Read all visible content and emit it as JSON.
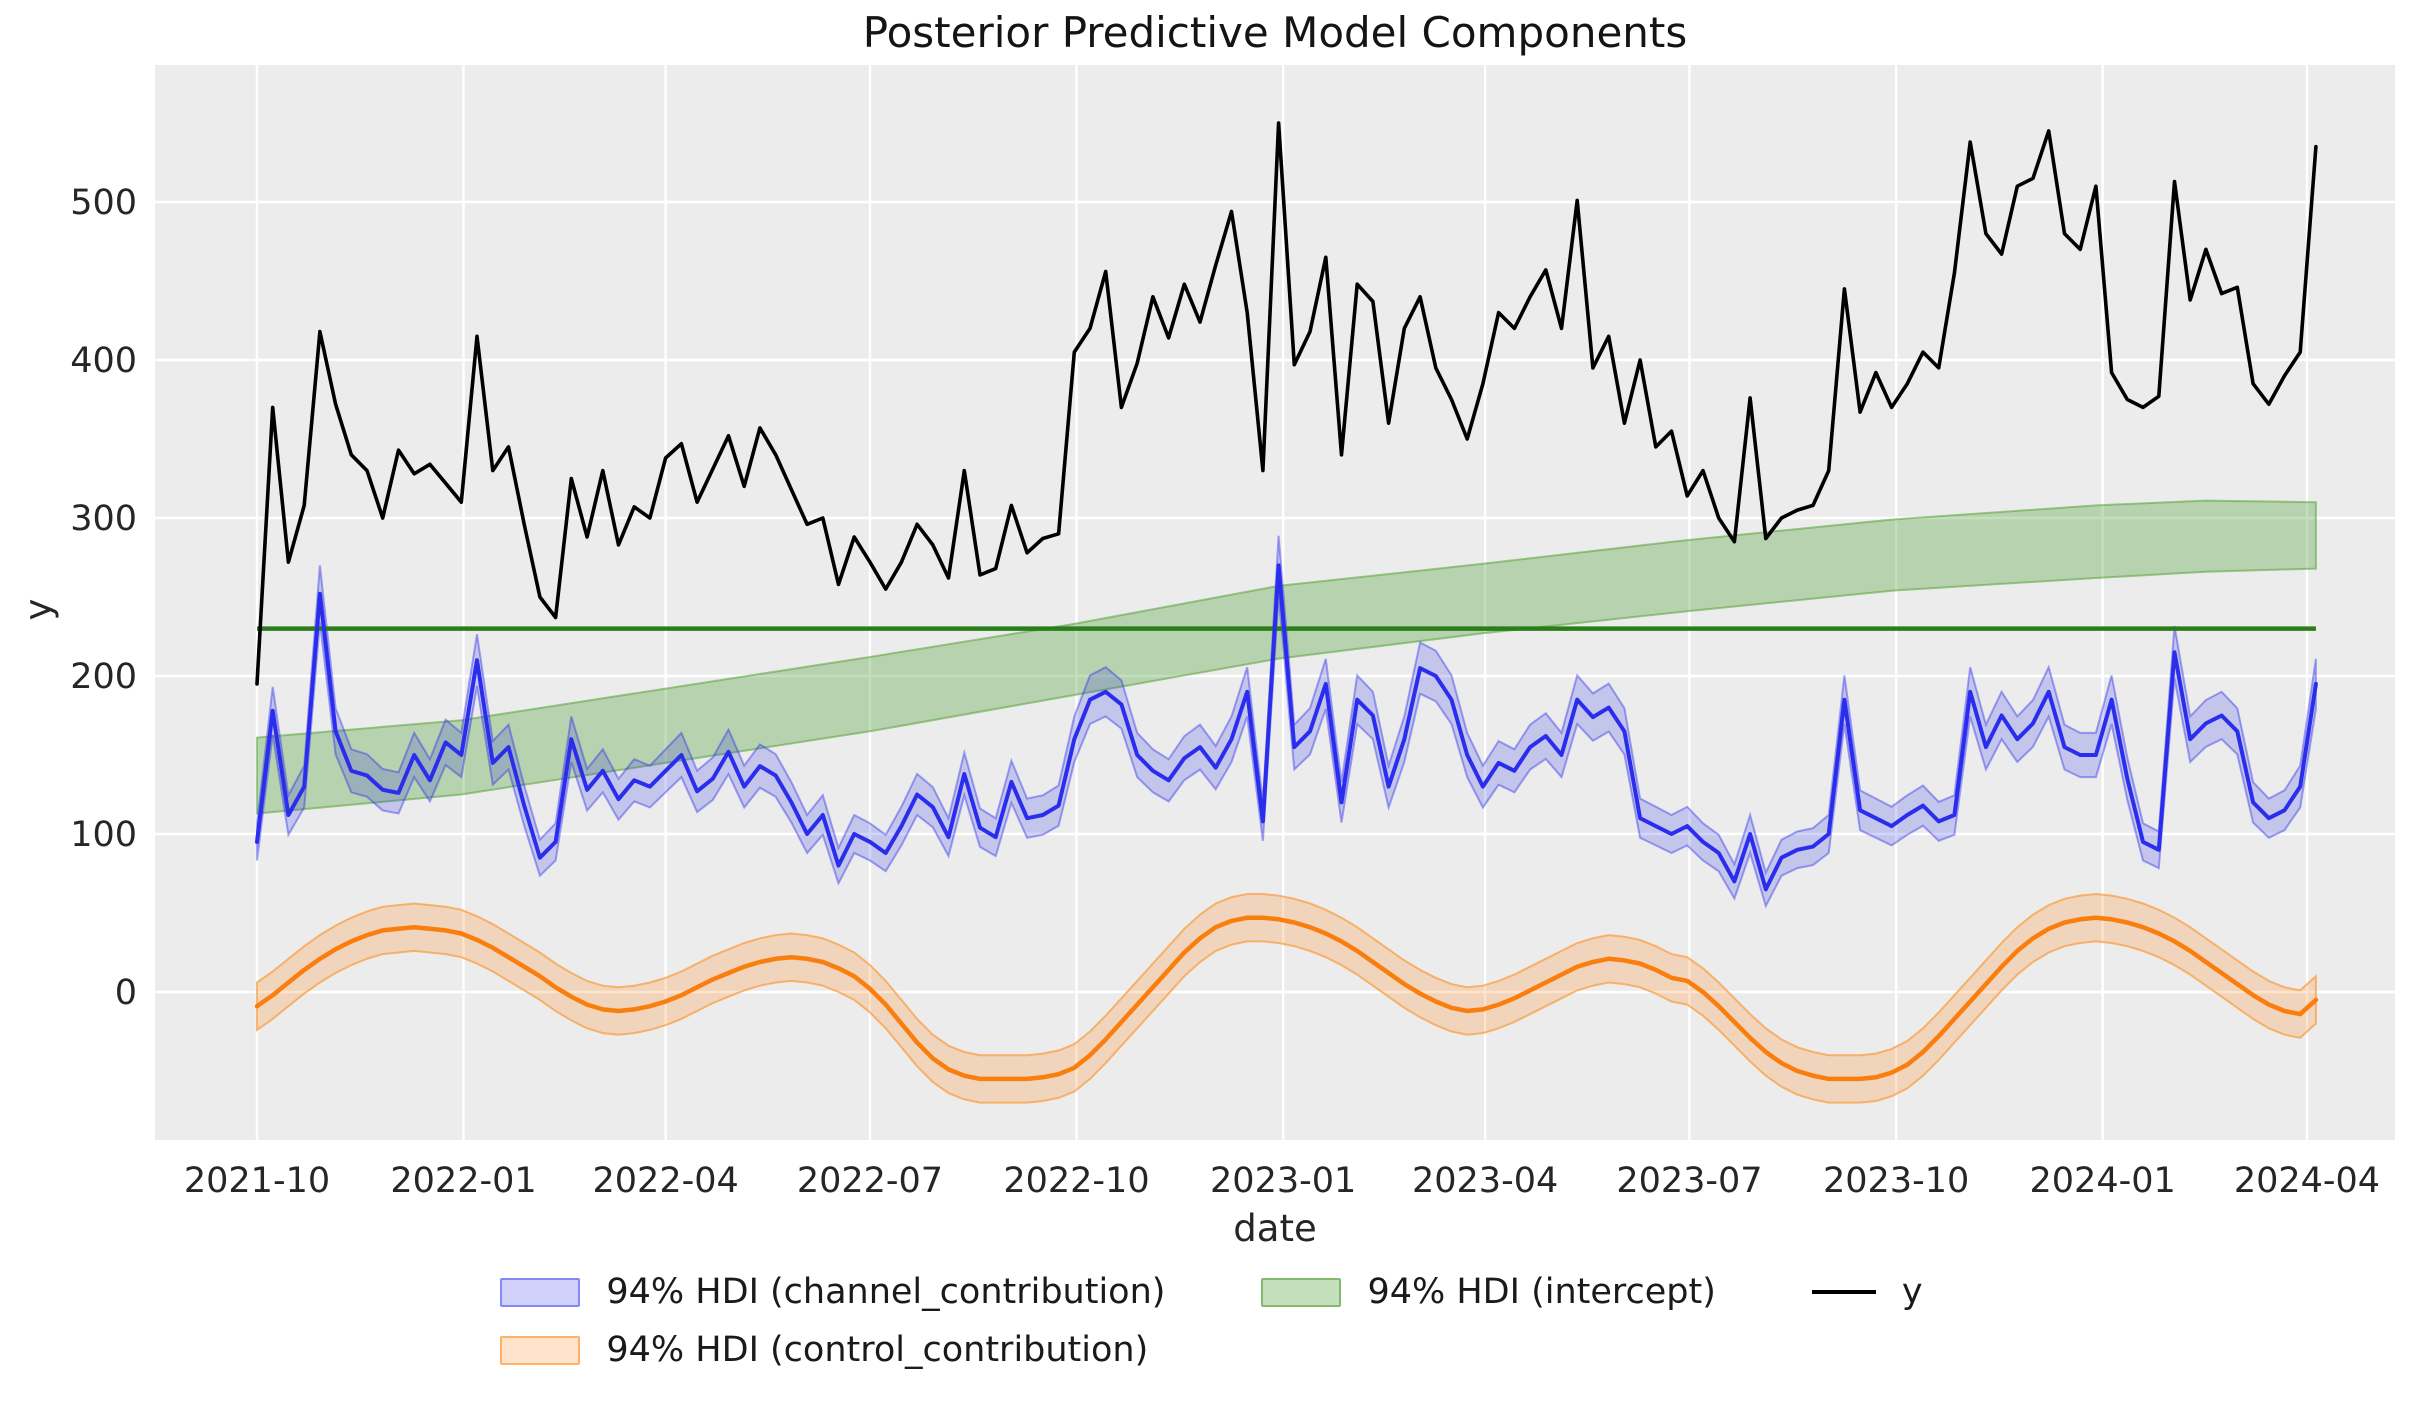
{
  "title": "Posterior Predictive Model Components",
  "x_axis": {
    "label": "date",
    "tick_labels": [
      "2021-10",
      "2022-01",
      "2022-04",
      "2022-07",
      "2022-10",
      "2023-01",
      "2023-04",
      "2023-07",
      "2023-10",
      "2024-01",
      "2024-04"
    ],
    "tick_week_index": [
      0,
      13.14,
      26.0,
      39.0,
      52.14,
      65.29,
      78.14,
      91.14,
      104.29,
      117.43,
      130.43
    ]
  },
  "y_axis": {
    "label": "y",
    "tick_labels": [
      "0",
      "100",
      "200",
      "300",
      "400",
      "500"
    ],
    "tick_values": [
      0,
      100,
      200,
      300,
      400,
      500
    ]
  },
  "legend": {
    "items": [
      {
        "label": "94% HDI (channel_contribution)",
        "swatch": "band",
        "fill": "rgba(42,46,236,0.22)",
        "edge": "rgba(42,46,236,0.45)"
      },
      {
        "label": "94% HDI (intercept)",
        "swatch": "band",
        "fill": "rgba(86,162,60,0.35)",
        "edge": "rgba(86,162,60,0.6)"
      },
      {
        "label": "y",
        "swatch": "line",
        "color": "#000000"
      },
      {
        "label": "94% HDI (control_contribution)",
        "swatch": "band",
        "fill": "rgba(255,127,14,0.22)",
        "edge": "rgba(255,127,14,0.5)"
      }
    ]
  },
  "colors": {
    "axes_background": "#ececec",
    "grid": "#ffffff",
    "y_line": "#000000",
    "channel_line": "#2a2eec",
    "channel_band_fill": "rgba(42,46,236,0.20)",
    "channel_band_edge": "rgba(42,46,236,0.42)",
    "control_line": "#f97e0e",
    "control_band_fill": "rgba(255,127,14,0.22)",
    "control_band_edge": "rgba(249,160,70,0.75)",
    "intercept_line": "#2a7e19",
    "intercept_band_fill": "rgba(86,162,60,0.35)",
    "intercept_band_edge": "rgba(86,162,60,0.55)",
    "tick_text": "#262626",
    "title_text": "#141414"
  },
  "chart_data": {
    "type": "line",
    "title": "Posterior Predictive Model Components",
    "xlabel": "date",
    "ylabel": "y",
    "x_start_date": "2021-10-01",
    "x_step_days": 7,
    "n_points": 132,
    "ylim_ticks": [
      0,
      500
    ],
    "grid": "on",
    "legend_position": "below",
    "hdi_probability": "94%",
    "series": [
      {
        "name": "y",
        "type": "line",
        "color": "#000000",
        "values": [
          195,
          370,
          272,
          308,
          418,
          372,
          340,
          330,
          300,
          343,
          328,
          334,
          322,
          310,
          415,
          330,
          345,
          296,
          250,
          237,
          325,
          288,
          330,
          283,
          307,
          300,
          338,
          347,
          310,
          331,
          352,
          320,
          357,
          340,
          318,
          296,
          300,
          258,
          288,
          272,
          255,
          272,
          296,
          283,
          262,
          330,
          264,
          268,
          308,
          278,
          287,
          290,
          405,
          420,
          456,
          370,
          398,
          440,
          414,
          448,
          424,
          460,
          494,
          430,
          330,
          550,
          397,
          418,
          465,
          340,
          448,
          437,
          360,
          420,
          440,
          395,
          375,
          350,
          385,
          430,
          420,
          440,
          457,
          420,
          501,
          395,
          415,
          360,
          400,
          345,
          355,
          314,
          330,
          300,
          285,
          376,
          287,
          300,
          305,
          308,
          330,
          445,
          367,
          392,
          370,
          385,
          405,
          395,
          455,
          538,
          480,
          467,
          510,
          515,
          545,
          480,
          470,
          510,
          392,
          375,
          370,
          377,
          513,
          438,
          470,
          442,
          446,
          385,
          372,
          390,
          405,
          535
        ]
      },
      {
        "name": "channel_contribution mean",
        "type": "line_with_hdi_band",
        "color": "#2a2eec",
        "band_halfwidth_rule": "8 + 0.04 * value",
        "values": [
          95,
          178,
          112,
          130,
          252,
          165,
          140,
          137,
          128,
          126,
          150,
          134,
          158,
          150,
          210,
          145,
          155,
          118,
          85,
          95,
          160,
          128,
          140,
          122,
          134,
          130,
          140,
          150,
          127,
          135,
          152,
          130,
          143,
          137,
          120,
          100,
          112,
          80,
          100,
          95,
          88,
          105,
          125,
          117,
          98,
          138,
          104,
          98,
          133,
          110,
          112,
          118,
          160,
          185,
          190,
          182,
          150,
          140,
          134,
          148,
          155,
          142,
          160,
          190,
          108,
          270,
          155,
          165,
          195,
          120,
          185,
          175,
          130,
          160,
          205,
          200,
          185,
          150,
          130,
          145,
          140,
          155,
          162,
          150,
          185,
          174,
          180,
          165,
          110,
          105,
          100,
          105,
          95,
          88,
          70,
          100,
          65,
          85,
          90,
          92,
          100,
          185,
          115,
          110,
          105,
          112,
          118,
          108,
          112,
          190,
          155,
          175,
          160,
          170,
          190,
          155,
          150,
          150,
          185,
          135,
          95,
          90,
          215,
          160,
          170,
          175,
          165,
          120,
          110,
          115,
          130,
          195
        ]
      },
      {
        "name": "control_contribution mean",
        "type": "line_with_hdi_band",
        "color": "#f97e0e",
        "band_halfwidth_rule": "15",
        "values": [
          -9,
          -2,
          6,
          14,
          21,
          27,
          32,
          36,
          39,
          40,
          41,
          40,
          39,
          37,
          33,
          28,
          22,
          16,
          10,
          3,
          -3,
          -8,
          -11,
          -12,
          -11,
          -9,
          -6,
          -2,
          3,
          8,
          12,
          16,
          19,
          21,
          22,
          21,
          19,
          15,
          10,
          2,
          -8,
          -20,
          -32,
          -42,
          -49,
          -53,
          -55,
          -55,
          -55,
          -55,
          -54,
          -52,
          -48,
          -40,
          -30,
          -19,
          -8,
          3,
          14,
          25,
          34,
          41,
          45,
          47,
          47,
          46,
          44,
          41,
          37,
          32,
          26,
          19,
          12,
          5,
          -1,
          -6,
          -10,
          -12,
          -11,
          -8,
          -4,
          1,
          6,
          11,
          16,
          19,
          21,
          20,
          18,
          14,
          9,
          7,
          0,
          -9,
          -19,
          -29,
          -38,
          -45,
          -50,
          -53,
          -55,
          -55,
          -55,
          -54,
          -51,
          -46,
          -38,
          -28,
          -17,
          -6,
          5,
          16,
          26,
          34,
          40,
          44,
          46,
          47,
          46,
          44,
          41,
          37,
          32,
          26,
          19,
          12,
          5,
          -2,
          -8,
          -12,
          -14,
          -5
        ]
      },
      {
        "name": "intercept mean",
        "type": "hline",
        "color": "#2a7e19",
        "value": 230
      },
      {
        "name": "intercept 94% HDI band",
        "type": "band",
        "color": "#56a23c",
        "anchors_week_lo_hi": [
          [
            0,
            113,
            161
          ],
          [
            13,
            125,
            172
          ],
          [
            26,
            145,
            192
          ],
          [
            39,
            165,
            212
          ],
          [
            52,
            188,
            233
          ],
          [
            65,
            211,
            257
          ],
          [
            78,
            227,
            271
          ],
          [
            91,
            241,
            286
          ],
          [
            104,
            254,
            299
          ],
          [
            117,
            262,
            308
          ],
          [
            124,
            266,
            311
          ],
          [
            131,
            268,
            310
          ]
        ]
      }
    ]
  }
}
